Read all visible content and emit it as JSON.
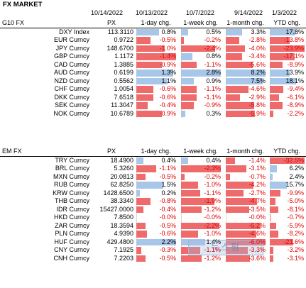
{
  "title": "FX MARKET",
  "dates": [
    "10/14/2022",
    "10/13/2022",
    "10/7/2022",
    "9/14/2022",
    "1/3/2022"
  ],
  "colors": {
    "positive_bar": "#a8c6e8",
    "negative_bar": "#ef6b6b",
    "negative_text": "#e00000"
  },
  "sections": [
    {
      "name": "G10 FX",
      "headers": [
        "PX",
        "1-day chg.",
        "1-week chg.",
        "1-month chg.",
        "YTD chg."
      ],
      "rows": [
        {
          "ticker": "DXY Index",
          "px": "113.3110",
          "c1": "0.8%",
          "c2": "0.5%",
          "c3": "3.3%",
          "c4": "17.8%"
        },
        {
          "ticker": "EUR Curncy",
          "px": "0.9722",
          "c1": "-0.5%",
          "c2": "-0.2%",
          "c3": "-2.8%",
          "c4": "-13.8%"
        },
        {
          "ticker": "JPY Curncy",
          "px": "148.6700",
          "c1": "-1.0%",
          "c2": "-2.4%",
          "c3": "-4.0%",
          "c4": "-23.9%"
        },
        {
          "ticker": "GBP Curncy",
          "px": "1.1172",
          "c1": "-1.4%",
          "c2": "0.8%",
          "c3": "-3.4%",
          "c4": "-17.1%"
        },
        {
          "ticker": "CAD Curncy",
          "px": "1.3885",
          "c1": "-0.9%",
          "c2": "-1.1%",
          "c3": "-5.6%",
          "c4": "-8.9%"
        },
        {
          "ticker": "AUD Curncy",
          "px": "0.6199",
          "c1": "1.3%",
          "c2": "2.8%",
          "c3": "8.2%",
          "c4": "13.9%"
        },
        {
          "ticker": "NZD Curncy",
          "px": "0.5562",
          "c1": "1.1%",
          "c2": "0.9%",
          "c3": "7.5%",
          "c4": "18.1%"
        },
        {
          "ticker": "CHF Curncy",
          "px": "1.0054",
          "c1": "-0.6%",
          "c2": "-1.1%",
          "c3": "-4.6%",
          "c4": "-9.4%"
        },
        {
          "ticker": "DKK Curncy",
          "px": "7.6518",
          "c1": "-0.6%",
          "c2": "-1.1%",
          "c3": "-2.9%",
          "c4": "-6.1%"
        },
        {
          "ticker": "SEK Curncy",
          "px": "11.3047",
          "c1": "-0.4%",
          "c2": "-0.9%",
          "c3": "-5.8%",
          "c4": "-8.9%"
        },
        {
          "ticker": "NOK Curncy",
          "px": "10.6789",
          "c1": "-0.9%",
          "c2": "0.3%",
          "c3": "-5.9%",
          "c4": "-2.2%"
        }
      ]
    },
    {
      "name": "EM FX",
      "headers": [
        "PX",
        "1-day chg.",
        "1-week chg.",
        "1-month chg.",
        "YTD chg."
      ],
      "rows": [
        {
          "ticker": "TRY Curncy",
          "px": "18.4900",
          "c1": "0.4%",
          "c2": "0.4%",
          "c3": "-1.4%",
          "c4": "-32.5%"
        },
        {
          "ticker": "BRL Curncy",
          "px": "5.3260",
          "c1": "-1.1%",
          "c2": "-2.3%",
          "c3": "-3.1%",
          "c4": "6.2%"
        },
        {
          "ticker": "MXN Curncy",
          "px": "20.0813",
          "c1": "-0.5%",
          "c2": "-0.2%",
          "c3": "-0.7%",
          "c4": "2.4%"
        },
        {
          "ticker": "RUB Curncy",
          "px": "62.8250",
          "c1": "1.5%",
          "c2": "-1.0%",
          "c3": "-4.2%",
          "c4": "15.7%"
        },
        {
          "ticker": "KRW Curncy",
          "px": "1428.6500",
          "c1": "0.2%",
          "c2": "-1.1%",
          "c3": "-2.7%",
          "c4": "-9.9%"
        },
        {
          "ticker": "THB Curncy",
          "px": "38.3340",
          "c1": "-0.8%",
          "c2": "-1.9%",
          "c3": "-4.7%",
          "c4": "-5.0%"
        },
        {
          "ticker": "IDR Curncy",
          "px": "15427.0000",
          "c1": "-0.4%",
          "c2": "-1.2%",
          "c3": "-3.5%",
          "c4": "-8.1%"
        },
        {
          "ticker": "HKD Curncy",
          "px": "7.8500",
          "c1": "-0.0%",
          "c2": "-0.0%",
          "c3": "-0.0%",
          "c4": "-0.7%"
        },
        {
          "ticker": "ZAR Curncy",
          "px": "18.3594",
          "c1": "-0.5%",
          "c2": "-2.2%",
          "c3": "-5.2%",
          "c4": "-5.9%"
        },
        {
          "ticker": "PLN Curncy",
          "px": "4.9390",
          "c1": "-0.6%",
          "c2": "-1.0%",
          "c3": "-4.6%",
          "c4": "-8.2%"
        },
        {
          "ticker": "HUF Curncy",
          "px": "429.4800",
          "c1": "2.2%",
          "c2": "1.4%",
          "c3": "-6.0%",
          "c4": "-21.6%"
        },
        {
          "ticker": "CNY Curncy",
          "px": "7.1925",
          "c1": "-0.3%",
          "c2": "-1.1%",
          "c3": "-3.3%",
          "c4": "-3.2%"
        },
        {
          "ticker": "CNH Curncy",
          "px": "7.2203",
          "c1": "-0.5%",
          "c2": "-1.2%",
          "c3": "-3.6%",
          "c4": "-3.1%"
        }
      ]
    }
  ]
}
